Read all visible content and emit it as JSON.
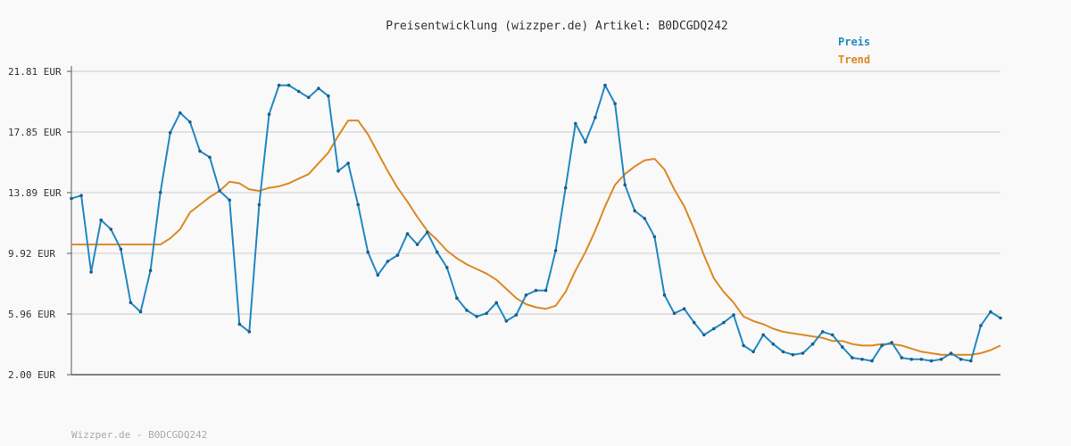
{
  "chart_data": {
    "type": "line",
    "title": "Preisentwicklung (wizzper.de) Artikel: B0DCGDQ242",
    "footer": "Wizzper.de - B0DCGDQ242",
    "ylim": [
      2.0,
      21.81
    ],
    "yticks": [
      "21.81 EUR",
      "17.85 EUR",
      "13.89 EUR",
      "9.92 EUR",
      "5.96 EUR",
      "2.00 EUR"
    ],
    "ytick_values": [
      21.81,
      17.85,
      13.89,
      9.92,
      5.96,
      2.0
    ],
    "grid": true,
    "legend_position": "top-right",
    "series": [
      {
        "name": "Preis",
        "color": "#2288c4",
        "markers": true,
        "values": [
          13.5,
          13.7,
          8.7,
          12.1,
          11.5,
          10.2,
          6.7,
          6.1,
          8.8,
          13.9,
          17.8,
          19.1,
          18.5,
          16.6,
          16.2,
          14.0,
          13.4,
          5.3,
          4.8,
          13.1,
          19.0,
          20.9,
          20.9,
          20.5,
          20.1,
          20.7,
          20.2,
          15.3,
          15.8,
          13.1,
          10.0,
          8.5,
          9.4,
          9.8,
          11.2,
          10.5,
          11.3,
          10.0,
          9.0,
          7.0,
          6.2,
          5.8,
          6.0,
          6.7,
          5.5,
          5.9,
          7.2,
          7.5,
          7.5,
          10.1,
          14.2,
          18.4,
          17.2,
          18.8,
          20.9,
          19.7,
          14.4,
          12.7,
          12.2,
          11.0,
          7.2,
          6.0,
          6.3,
          5.4,
          4.6,
          5.0,
          5.4,
          5.9,
          3.9,
          3.5,
          4.6,
          4.0,
          3.5,
          3.3,
          3.4,
          4.0,
          4.8,
          4.6,
          3.8,
          3.1,
          3.0,
          2.9,
          3.9,
          4.1,
          3.1,
          3.0,
          3.0,
          2.9,
          3.0,
          3.4,
          3.0,
          2.9,
          5.2,
          6.1,
          5.7
        ]
      },
      {
        "name": "Trend",
        "color": "#dd8822",
        "markers": false,
        "values": [
          10.5,
          10.5,
          10.5,
          10.5,
          10.5,
          10.5,
          10.5,
          10.5,
          10.5,
          10.5,
          10.9,
          11.5,
          12.6,
          13.1,
          13.6,
          14.0,
          14.6,
          14.5,
          14.1,
          14.0,
          14.2,
          14.3,
          14.5,
          14.8,
          15.1,
          15.8,
          16.5,
          17.6,
          18.6,
          18.6,
          17.7,
          16.5,
          15.3,
          14.2,
          13.3,
          12.3,
          11.4,
          10.8,
          10.1,
          9.6,
          9.2,
          8.9,
          8.6,
          8.2,
          7.6,
          7.0,
          6.6,
          6.4,
          6.3,
          6.5,
          7.4,
          8.8,
          10.0,
          11.4,
          13.0,
          14.4,
          15.1,
          15.6,
          16.0,
          16.1,
          15.4,
          14.1,
          13.0,
          11.5,
          9.8,
          8.3,
          7.4,
          6.7,
          5.8,
          5.5,
          5.3,
          5.0,
          4.8,
          4.7,
          4.6,
          4.5,
          4.4,
          4.2,
          4.2,
          4.0,
          3.9,
          3.9,
          4.0,
          4.0,
          3.9,
          3.7,
          3.5,
          3.4,
          3.3,
          3.3,
          3.3,
          3.3,
          3.4,
          3.6,
          3.9
        ]
      }
    ]
  }
}
